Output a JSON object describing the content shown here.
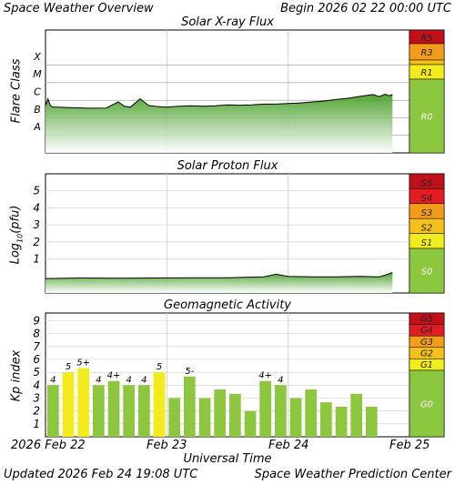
{
  "header": {
    "left": "Space Weather Overview",
    "right": "Begin 2026 02 22 00:00 UTC"
  },
  "footer": {
    "left": "Updated 2026 Feb 24 19:08 UTC",
    "right": "Space Weather Prediction Center"
  },
  "colors": {
    "green": "#8dc63f",
    "yellow": "#f3ec1c",
    "orange": "#f39c1a",
    "red": "#e31b23",
    "darkred": "#c0111a",
    "grid": "#d0d0d0"
  },
  "xaxis": {
    "title": "Universal Time",
    "ticks": [
      "2026 Feb 22",
      "Feb 23",
      "Feb 24",
      "Feb 25"
    ]
  },
  "panels": {
    "xray": {
      "title": "Solar X-ray Flux",
      "ylabel": "Flare Class",
      "classes": [
        "X",
        "M",
        "C",
        "B",
        "A"
      ],
      "scale": [
        {
          "label": "R5",
          "color": "#c0111a"
        },
        {
          "label": "R3",
          "color": "#f39c1a"
        },
        {
          "label": "R1",
          "color": "#f3ec1c"
        },
        {
          "label": "R0",
          "color": "#8dc63f"
        }
      ]
    },
    "proton": {
      "title": "Solar Proton Flux",
      "ylabel_base": "Log",
      "ylabel_sub": "10",
      "ylabel_tail": "(pfu)",
      "ticks": [
        "5",
        "4",
        "3",
        "2",
        "1"
      ],
      "scale": [
        {
          "label": "S5",
          "color": "#c0111a"
        },
        {
          "label": "S4",
          "color": "#e31b23"
        },
        {
          "label": "S3",
          "color": "#f39c1a"
        },
        {
          "label": "S2",
          "color": "#f3c01c"
        },
        {
          "label": "S1",
          "color": "#f3ec1c"
        },
        {
          "label": "S0",
          "color": "#8dc63f"
        }
      ]
    },
    "geomag": {
      "title": "Geomagnetic Activity",
      "ylabel": "Kp index",
      "ticks": [
        "9",
        "8",
        "7",
        "6",
        "5",
        "4",
        "3",
        "2",
        "1"
      ],
      "scale": [
        {
          "label": "G5",
          "color": "#c0111a"
        },
        {
          "label": "G4",
          "color": "#e31b23"
        },
        {
          "label": "G3",
          "color": "#f39c1a"
        },
        {
          "label": "G2",
          "color": "#f3c01c"
        },
        {
          "label": "G1",
          "color": "#f3ec1c"
        },
        {
          "label": "G0",
          "color": "#8dc63f"
        }
      ]
    }
  },
  "chart_data": [
    {
      "type": "area",
      "title": "Solar X-ray Flux",
      "ylabel": "Flare Class",
      "yscale": "log",
      "ylim": [
        1e-09,
        0.01
      ],
      "x_unit": "days since 2026 Feb 22 00:00 UTC",
      "xlim": [
        0,
        3
      ],
      "series": [
        {
          "x": [
            0.0,
            0.02,
            0.04,
            0.06,
            0.1,
            0.2,
            0.35,
            0.5,
            0.6,
            0.65,
            0.7,
            0.78,
            0.85,
            0.9,
            0.95,
            1.0,
            1.1,
            1.2,
            1.3,
            1.4,
            1.5,
            1.6,
            1.7,
            1.8,
            1.9,
            2.0,
            2.1,
            2.2,
            2.3,
            2.4,
            2.5,
            2.6,
            2.7,
            2.75,
            2.8,
            2.83,
            2.86
          ],
          "y": [
            5e-07,
            1.2e-06,
            5e-07,
            4e-07,
            4e-07,
            3.8e-07,
            3.5e-07,
            3.6e-07,
            8e-07,
            4.5e-07,
            4e-07,
            1.2e-06,
            5e-07,
            4.5e-07,
            4.2e-07,
            4e-07,
            4.5e-07,
            4.8e-07,
            4.5e-07,
            4.8e-07,
            5.5e-07,
            5.2e-07,
            5.5e-07,
            6e-07,
            6e-07,
            6.5e-07,
            7e-07,
            8e-07,
            9e-07,
            1.1e-06,
            1.3e-06,
            1.7e-06,
            2.1e-06,
            1.6e-06,
            2.2e-06,
            1.8e-06,
            2.1e-06
          ]
        }
      ]
    },
    {
      "type": "area",
      "title": "Solar Proton Flux",
      "ylabel": "Log10(pfu)",
      "ylim": [
        -1,
        6
      ],
      "x_unit": "days since 2026 Feb 22 00:00 UTC",
      "xlim": [
        0,
        3
      ],
      "series": [
        {
          "x": [
            0.0,
            0.3,
            0.6,
            0.9,
            1.2,
            1.5,
            1.8,
            1.9,
            2.0,
            2.2,
            2.4,
            2.6,
            2.75,
            2.8,
            2.86
          ],
          "y": [
            -0.15,
            -0.12,
            -0.13,
            -0.12,
            -0.1,
            -0.1,
            -0.05,
            0.1,
            -0.02,
            -0.05,
            -0.05,
            -0.02,
            -0.05,
            0.05,
            0.2
          ]
        }
      ]
    },
    {
      "type": "bar",
      "title": "Geomagnetic Activity",
      "ylabel": "Kp index",
      "ylim": [
        0,
        9.6
      ],
      "x_unit": "3-hour intervals from 2026 Feb 22 00:00 UTC",
      "values": [
        4,
        5,
        5.33,
        4,
        4.33,
        4,
        4,
        5,
        3,
        4.67,
        3,
        3.67,
        3.33,
        2,
        4.33,
        4,
        3,
        3.67,
        2.67,
        2.33,
        3.33,
        2.33
      ],
      "labels": [
        "4",
        "5",
        "5+",
        "4",
        "4+",
        "4",
        "4",
        "5",
        "",
        "5-",
        "",
        "",
        "",
        "",
        "4+",
        "4",
        "",
        "",
        "",
        "",
        "",
        ""
      ],
      "thresholds": {
        "yellow": 5,
        "orange": 7,
        "red": 8
      }
    }
  ]
}
